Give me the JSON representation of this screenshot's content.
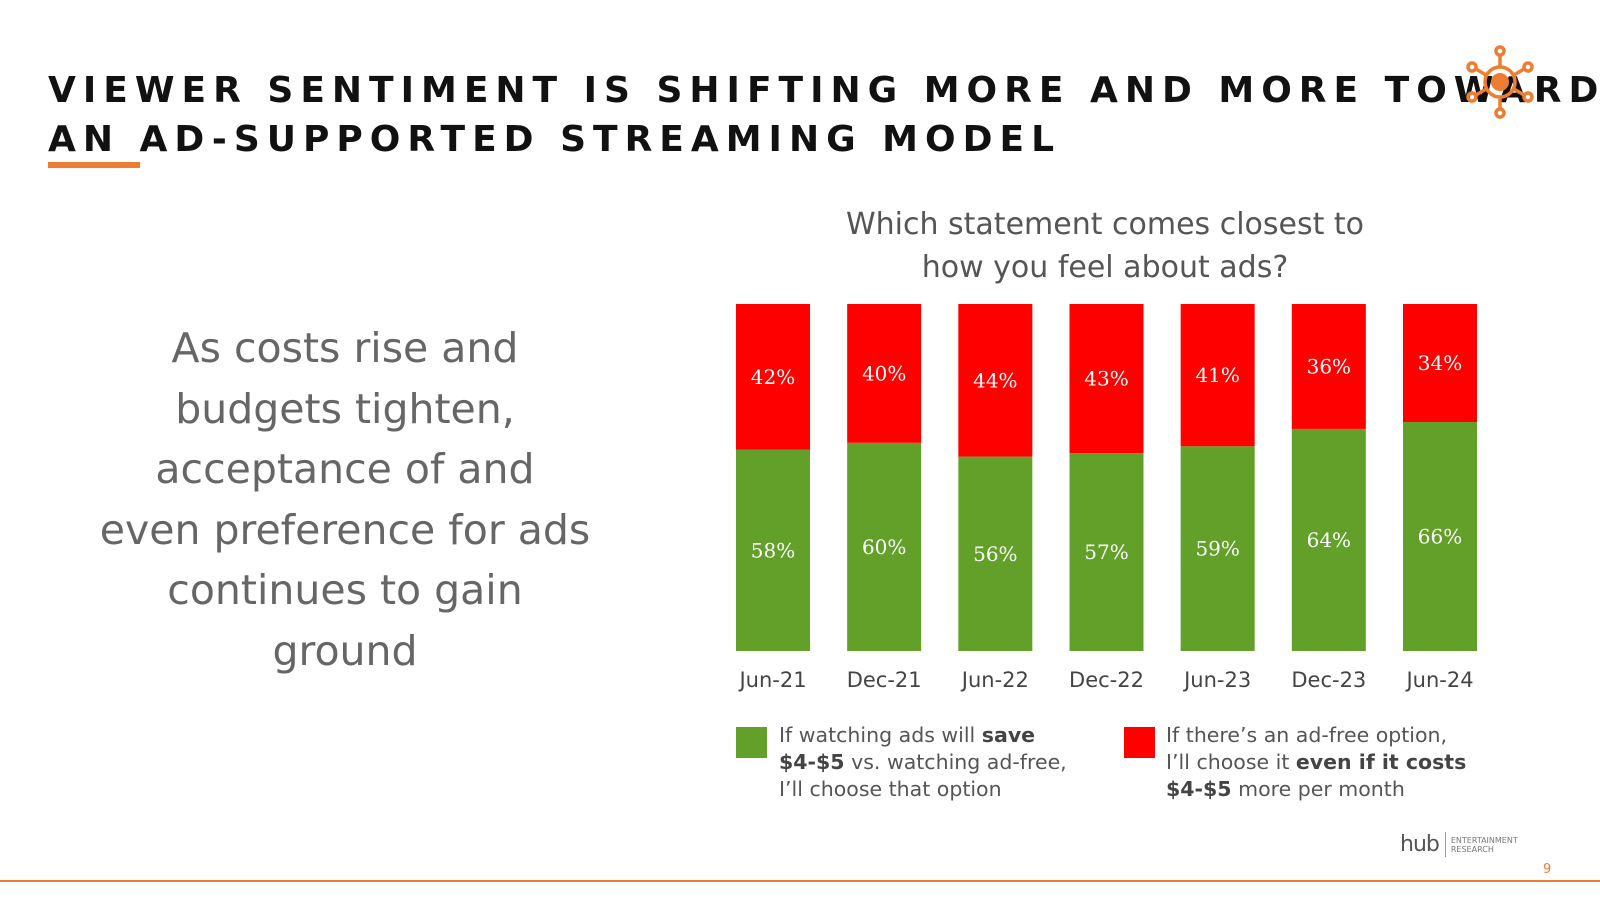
{
  "colors": {
    "accent": "#ED7D31",
    "green": "#62A029",
    "red": "#FF0000",
    "text_dark": "#111111",
    "text_gray": "#666666"
  },
  "header": {
    "title_line1": "VIEWER SENTIMENT IS SHIFTING MORE AND MORE TOWARD",
    "title_line2": "AN AD-SUPPORTED STREAMING MODEL",
    "logo_icon": "sun-network-icon"
  },
  "left_panel": {
    "lines": [
      "As costs rise and",
      "budgets tighten,",
      "acceptance of and",
      "even preference for ads",
      "continues to gain",
      "ground"
    ]
  },
  "chart_data": {
    "type": "bar",
    "stacked": true,
    "title": "Which statement comes closest to how you feel about ads?",
    "title_lines": [
      "Which statement comes closest to",
      "how you feel about ads?"
    ],
    "categories": [
      "Jun-21",
      "Dec-21",
      "Jun-22",
      "Dec-22",
      "Jun-23",
      "Dec-23",
      "Jun-24"
    ],
    "series": [
      {
        "name": "If watching ads will save $4-$5 vs. watching ad-free, I'll choose that option",
        "color": "#62A029",
        "values": [
          58,
          60,
          56,
          57,
          59,
          64,
          66
        ],
        "labels": [
          "58%",
          "60%",
          "56%",
          "57%",
          "59%",
          "64%",
          "66%"
        ]
      },
      {
        "name": "If there's an ad-free option, I'll choose it even if it costs $4-$5 more per month",
        "color": "#FF0000",
        "values": [
          42,
          40,
          44,
          43,
          41,
          36,
          34
        ],
        "labels": [
          "42%",
          "40%",
          "44%",
          "43%",
          "41%",
          "36%",
          "34%"
        ]
      }
    ],
    "ylim": [
      0,
      100
    ],
    "xlabel": "",
    "ylabel": "",
    "grid": false,
    "legend_position": "bottom"
  },
  "legend": {
    "green": {
      "part1": "If watching ads will ",
      "bold1": "save",
      "bold2": "$4-$5",
      "part2": " vs. watching ad-free,",
      "part3": "I’ll choose that option"
    },
    "red": {
      "part1": "If there’s an ad-free option,",
      "part2": "I’ll choose it ",
      "bold1": "even if it costs",
      "bold2": "$4-$5",
      "part3": " more per month"
    }
  },
  "footer": {
    "brand_name": "hub",
    "brand_sub_line1": "ENTERTAINMENT",
    "brand_sub_line2": "RESEARCH",
    "page_number": "9"
  }
}
